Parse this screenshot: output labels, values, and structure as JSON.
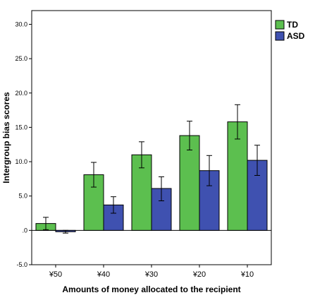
{
  "chart_data": {
    "type": "bar",
    "categories": [
      "¥50",
      "¥40",
      "¥30",
      "¥20",
      "¥10"
    ],
    "series": [
      {
        "name": "TD",
        "color": "#5cbf4f",
        "values": [
          1.0,
          8.1,
          11.0,
          13.8,
          15.8
        ],
        "error_low": [
          0.1,
          6.3,
          9.1,
          11.7,
          13.3
        ],
        "error_high": [
          1.9,
          9.9,
          12.9,
          15.9,
          18.3
        ]
      },
      {
        "name": "ASD",
        "color": "#3f51b0",
        "values": [
          -0.2,
          3.7,
          6.1,
          8.7,
          10.2
        ],
        "error_low": [
          -0.4,
          2.5,
          4.3,
          6.5,
          8.0
        ],
        "error_high": [
          0.0,
          4.9,
          7.8,
          10.9,
          12.4
        ]
      }
    ],
    "ylim": [
      -5.0,
      32.0
    ],
    "yticks": [
      -5.0,
      0.0,
      5.0,
      10.0,
      15.0,
      20.0,
      25.0,
      30.0
    ],
    "ytick_labels": [
      "-5.0",
      ".0",
      "5.0",
      "10.0",
      "15.0",
      "20.0",
      "25.0",
      "30.0"
    ],
    "xlabel": "Amounts of money allocated to the recipient",
    "ylabel": "Intergroup bias scores",
    "title": "",
    "grid": false,
    "legend_position": "top-right",
    "zero_line": true,
    "error_bars": true
  }
}
